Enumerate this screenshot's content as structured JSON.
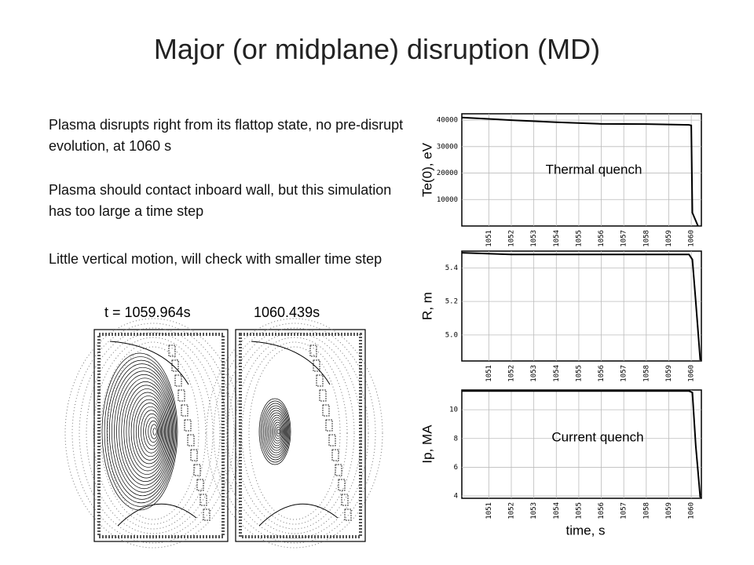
{
  "slide": {
    "title": "Major (or midplane) disruption (MD)",
    "paragraphs": [
      "Plasma disrupts right from its flattop state, no pre-disrupt evolution, at 1060 s",
      "Plasma should contact inboard wall, but this simulation has too large a time step",
      "Little vertical motion, will check with smaller time step"
    ],
    "time_labels": [
      "t = 1059.964s",
      "1060.439s"
    ]
  },
  "chart_data": [
    {
      "type": "line",
      "ylabel": "Te(0), eV",
      "annotation": "Thermal quench",
      "color": "#000000",
      "grid": true,
      "x": [
        1049.8,
        1052,
        1054,
        1056,
        1058,
        1059.9,
        1060.0,
        1060.05,
        1060.2,
        1060.3
      ],
      "values": [
        41000,
        40000,
        39200,
        38600,
        38500,
        38200,
        38000,
        5000,
        2000,
        0
      ],
      "xlim": [
        1049.8,
        1060.45
      ],
      "ylim": [
        0,
        42400
      ],
      "xticks": [
        1051,
        1052,
        1053,
        1054,
        1055,
        1056,
        1057,
        1058,
        1059,
        1060
      ],
      "yticks": [
        10000,
        20000,
        30000,
        40000
      ]
    },
    {
      "type": "line",
      "ylabel": "R, m",
      "color": "#000000",
      "grid": true,
      "x": [
        1049.8,
        1052,
        1055,
        1058,
        1059.9,
        1060.05,
        1060.2,
        1060.4
      ],
      "values": [
        5.49,
        5.48,
        5.48,
        5.48,
        5.48,
        5.45,
        5.2,
        4.85
      ],
      "xlim": [
        1049.8,
        1060.45
      ],
      "ylim": [
        4.845,
        5.5
      ],
      "xticks": [
        1051,
        1052,
        1053,
        1054,
        1055,
        1056,
        1057,
        1058,
        1059,
        1060
      ],
      "yticks": [
        {
          "value": 5,
          "label": "5.0"
        },
        5.2,
        5.4
      ]
    },
    {
      "type": "line",
      "ylabel": "Ip, MA",
      "xlabel": "time, s",
      "annotation": "Current quench",
      "color": "#000000",
      "grid": true,
      "x": [
        1049.8,
        1055,
        1059.9,
        1060.05,
        1060.2,
        1060.4
      ],
      "values": [
        11.3,
        11.3,
        11.3,
        11.2,
        7.5,
        3.9
      ],
      "xlim": [
        1049.8,
        1060.45
      ],
      "ylim": [
        3.84,
        11.37
      ],
      "xticks": [
        1051,
        1052,
        1053,
        1054,
        1055,
        1056,
        1057,
        1058,
        1059,
        1060
      ],
      "yticks": [
        4,
        6,
        8,
        10
      ]
    }
  ]
}
